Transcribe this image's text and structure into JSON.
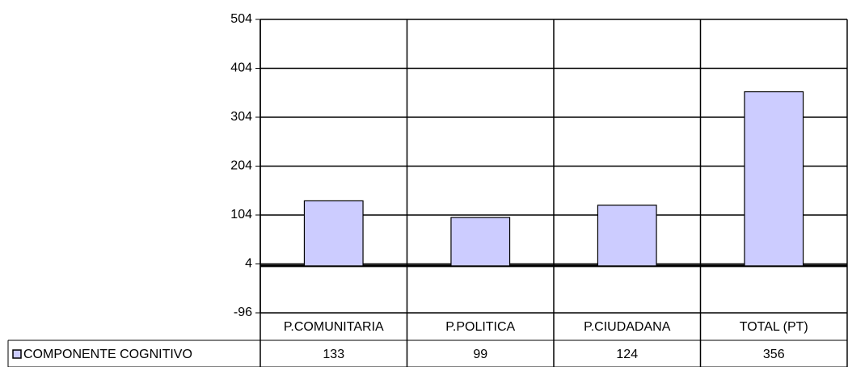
{
  "chart_data": {
    "type": "bar",
    "categories": [
      "P.COMUNITARIA",
      "P.POLITICA",
      "P.CIUDADANA",
      "TOTAL (PT)"
    ],
    "series": [
      {
        "name": "COMPONENTE COGNITIVO",
        "color": "#ccccff",
        "values": [
          133,
          99,
          124,
          356
        ]
      }
    ],
    "ylim": [
      -96,
      504
    ],
    "yticks": [
      -96,
      4,
      104,
      204,
      304,
      404,
      504
    ],
    "grid": true
  }
}
